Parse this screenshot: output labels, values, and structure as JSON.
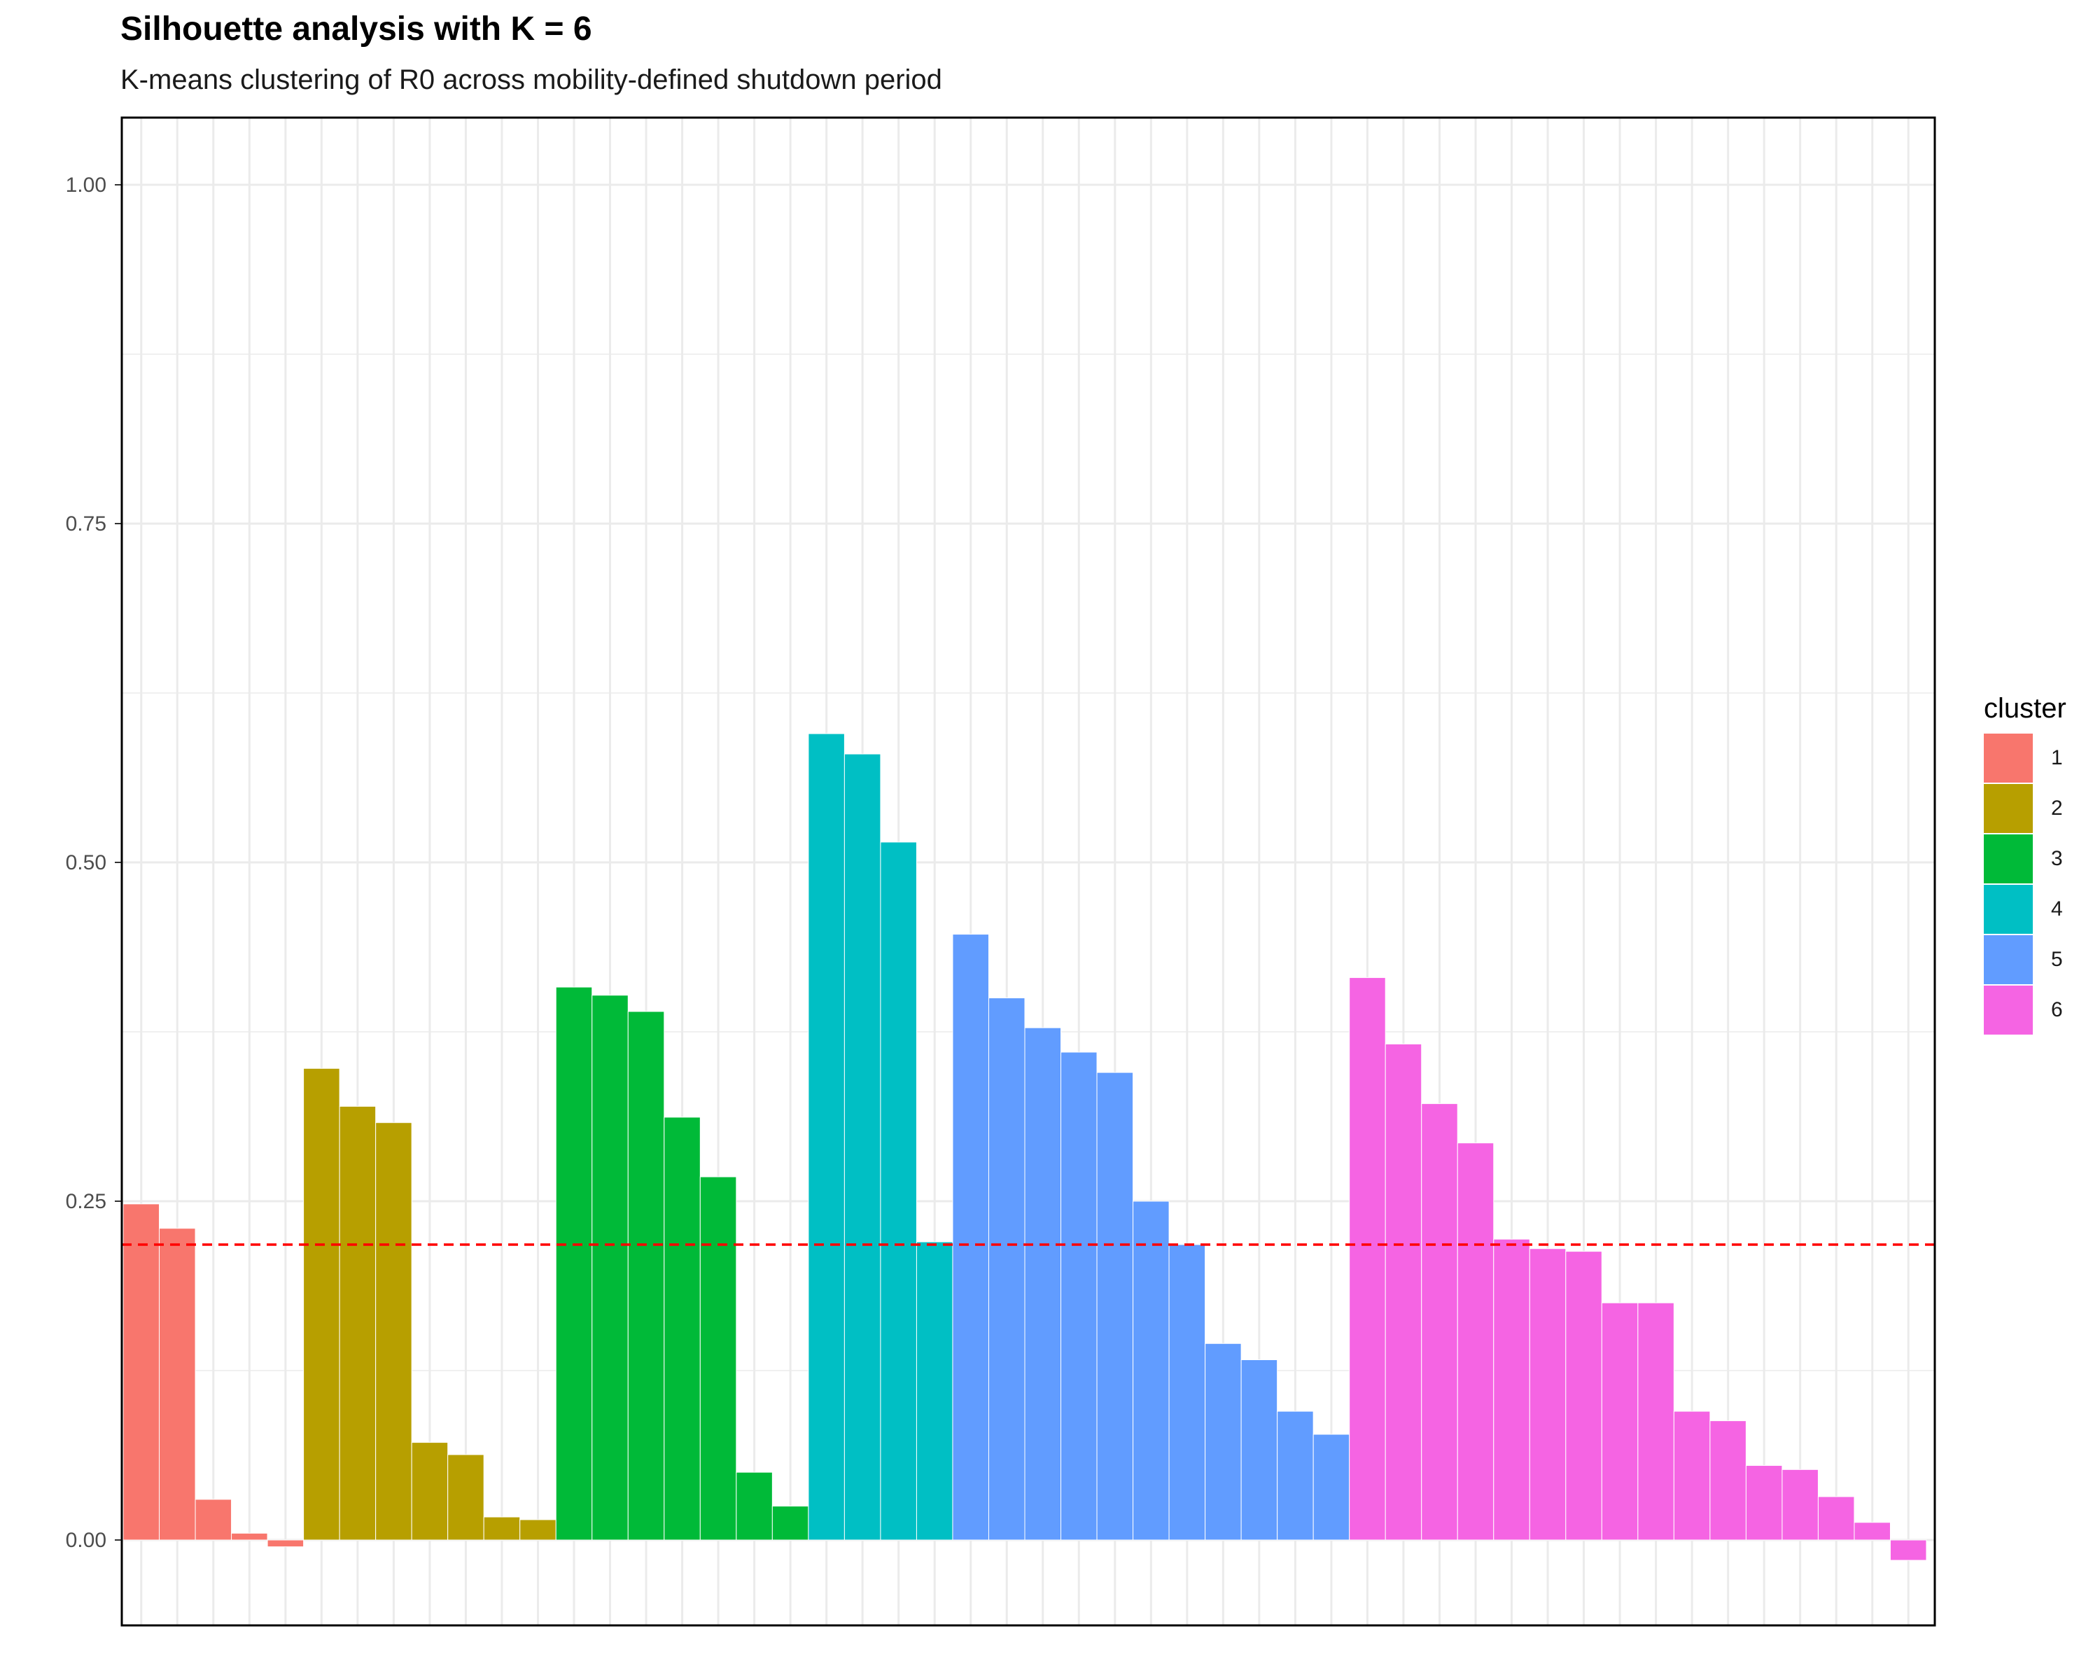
{
  "title": "Silhouette analysis with K = 6",
  "subtitle": "K-means clustering of R0 across mobility-defined shutdown period",
  "chart_data": {
    "type": "bar",
    "title": "Silhouette analysis with K = 6",
    "subtitle": "K-means clustering of R0 across mobility-defined shutdown period",
    "xlabel": "",
    "ylabel": "",
    "ylim": [
      -0.065,
      1.05
    ],
    "y_ticks": [
      "0.00",
      "0.25",
      "0.50",
      "0.75",
      "1.00"
    ],
    "grid": true,
    "reference_line": {
      "y": 0.218,
      "style": "dashed",
      "color": "#ff0000"
    },
    "legend": {
      "title": "cluster",
      "position": "right"
    },
    "series": [
      {
        "name": "1",
        "color": "#F8766D",
        "values": [
          0.248,
          0.23,
          0.03,
          0.005,
          -0.005
        ]
      },
      {
        "name": "2",
        "color": "#B79F00",
        "values": [
          0.348,
          0.32,
          0.308,
          0.072,
          0.063,
          0.017,
          0.015
        ]
      },
      {
        "name": "3",
        "color": "#00BA38",
        "values": [
          0.408,
          0.402,
          0.39,
          0.312,
          0.268,
          0.05,
          0.025
        ]
      },
      {
        "name": "4",
        "color": "#00BFC4",
        "values": [
          0.595,
          0.58,
          0.515,
          0.22
        ]
      },
      {
        "name": "5",
        "color": "#619CFF",
        "values": [
          0.447,
          0.4,
          0.378,
          0.36,
          0.345,
          0.25,
          0.218,
          0.145,
          0.133,
          0.095,
          0.078
        ]
      },
      {
        "name": "6",
        "color": "#F564E3",
        "values": [
          0.415,
          0.366,
          0.322,
          0.293,
          0.222,
          0.215,
          0.213,
          0.175,
          0.175,
          0.095,
          0.088,
          0.055,
          0.052,
          0.032,
          0.013,
          -0.015
        ]
      }
    ]
  }
}
